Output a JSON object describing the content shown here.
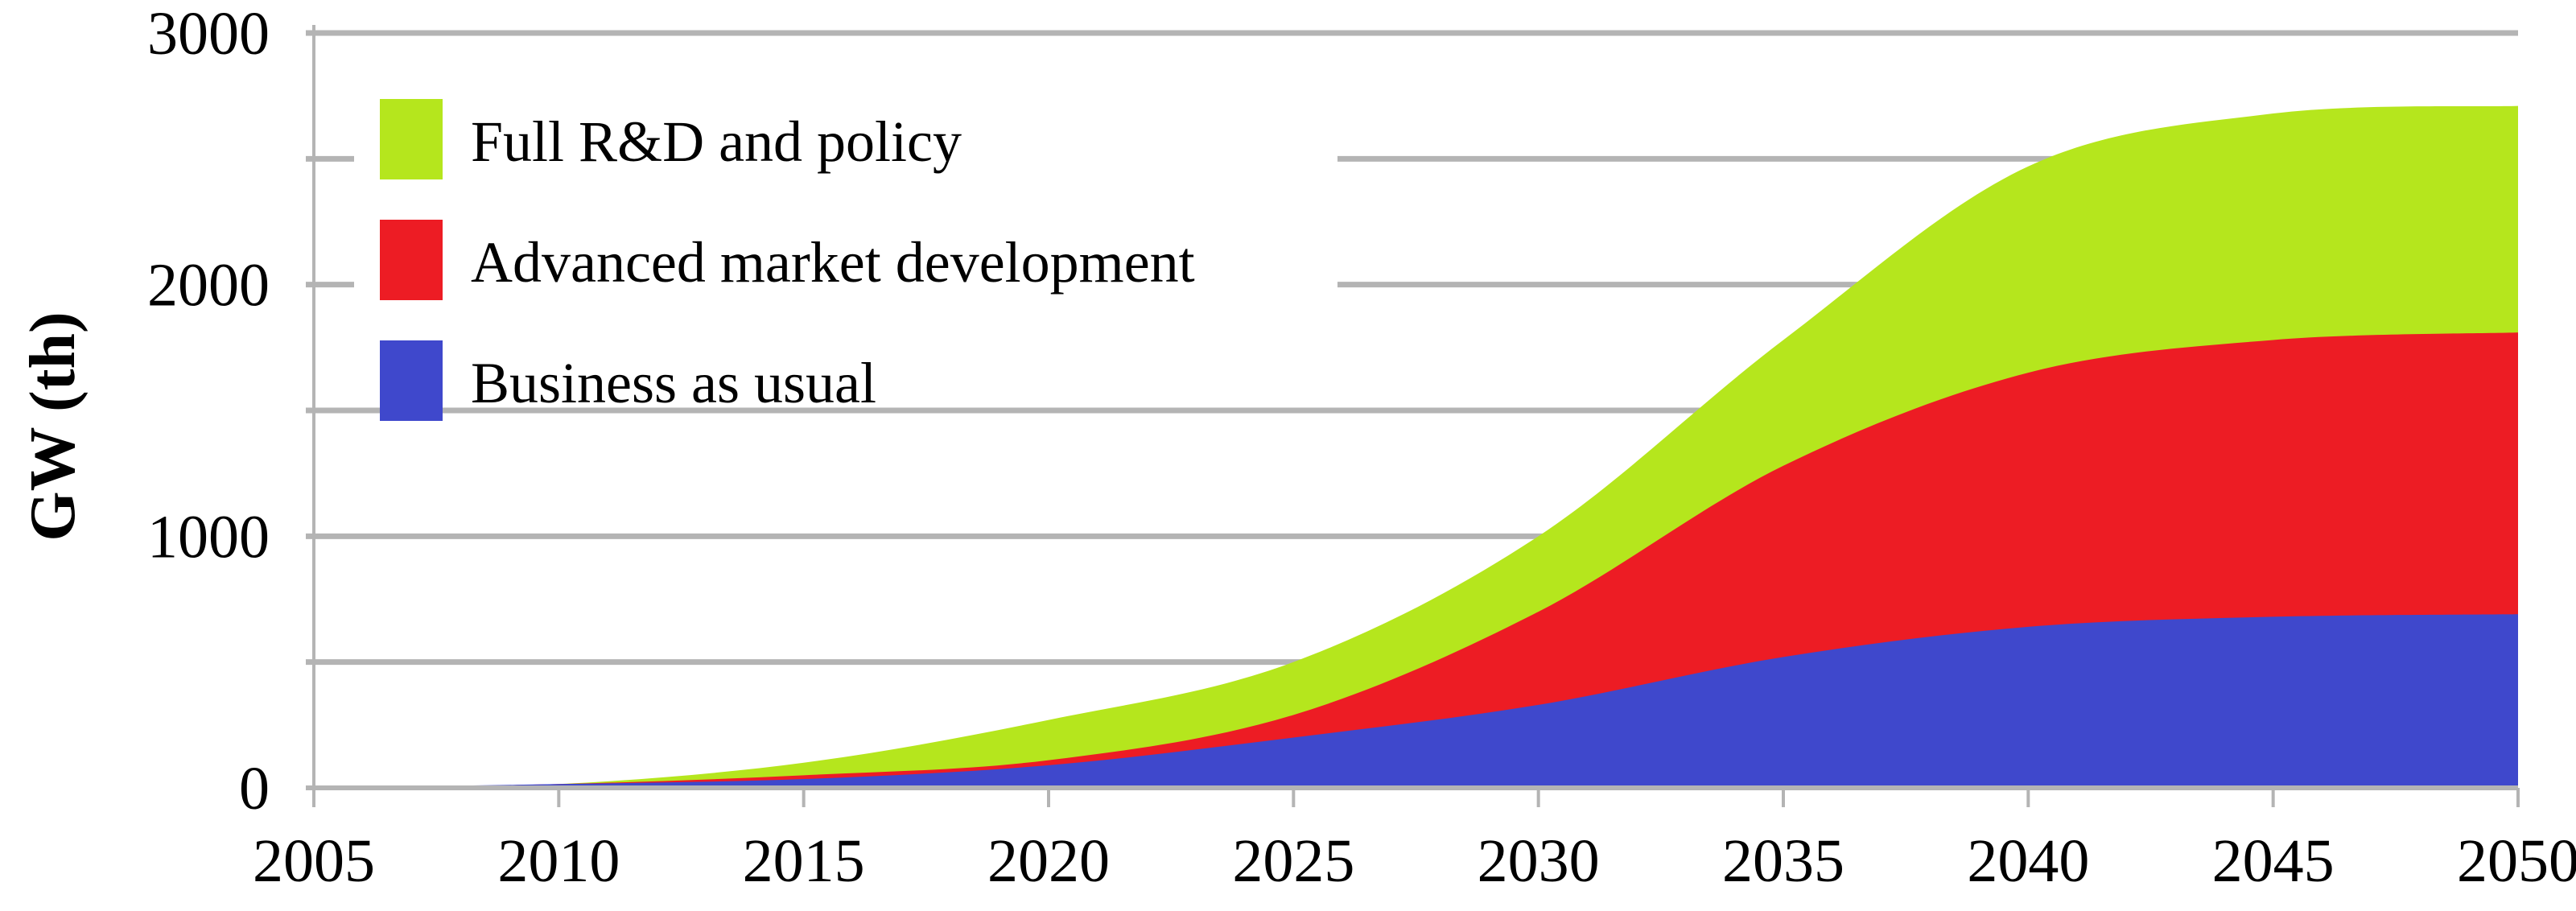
{
  "chart_data": {
    "type": "area",
    "stacked": true,
    "title": "",
    "xlabel": "",
    "ylabel": "GW (th)",
    "x": [
      2005,
      2010,
      2015,
      2020,
      2025,
      2030,
      2035,
      2040,
      2045,
      2050
    ],
    "xlim": [
      2005,
      2050
    ],
    "ylim": [
      0,
      3000
    ],
    "xticks": [
      "2005",
      "2010",
      "2015",
      "2020",
      "2025",
      "2030",
      "2035",
      "2040",
      "2045",
      "2050"
    ],
    "yticks": [
      "0",
      "1000",
      "2000",
      "3000"
    ],
    "gridlines": [
      0,
      500,
      1000,
      1500,
      2000,
      2500,
      3000
    ],
    "grid": true,
    "legend_position": "top-left",
    "series": [
      {
        "name": "Business as usual",
        "color": "#3f48cc",
        "values": [
          0,
          15,
          35,
          90,
          200,
          330,
          520,
          640,
          680,
          690
        ]
      },
      {
        "name": "Advanced market development",
        "color": "#ed1c24",
        "values": [
          0,
          0,
          15,
          20,
          90,
          370,
          760,
          1010,
          1100,
          1120
        ]
      },
      {
        "name": "Full R&D and policy",
        "color": "#b5e61d",
        "values": [
          0,
          0,
          50,
          160,
          210,
          300,
          500,
          820,
          900,
          900
        ]
      }
    ],
    "legend_order": [
      "Full R&D and policy",
      "Advanced market development",
      "Business as usual"
    ]
  }
}
